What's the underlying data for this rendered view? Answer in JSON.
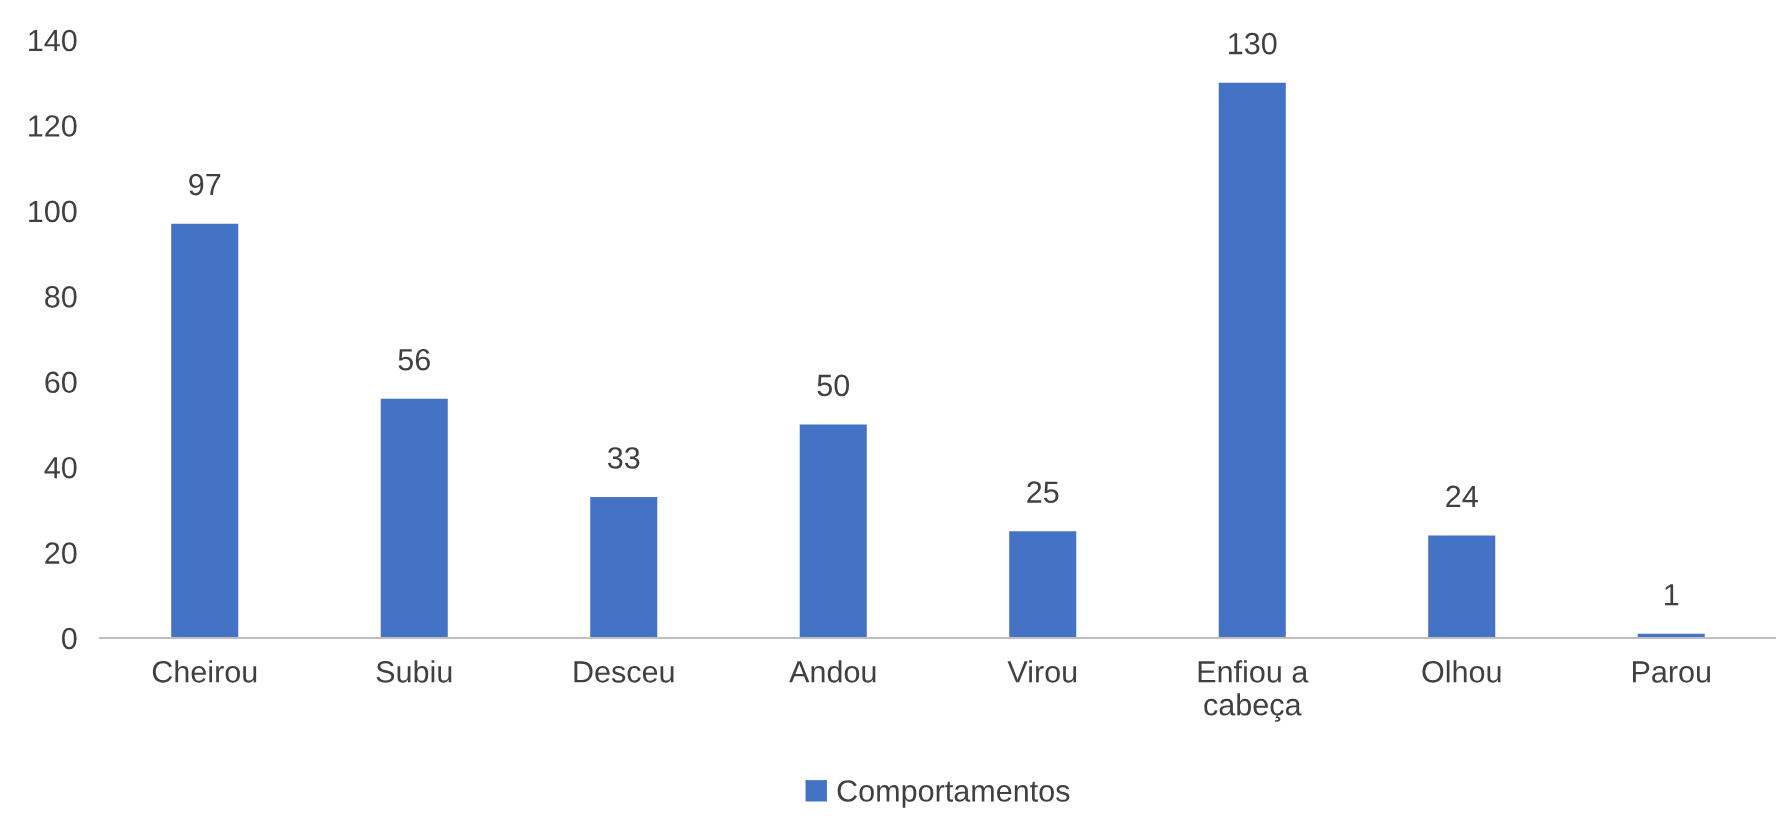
{
  "chart_data": {
    "type": "bar",
    "categories": [
      "Cheirou",
      "Subiu",
      "Desceu",
      "Andou",
      "Virou",
      "Enfiou a\ncabeça",
      "Olhou",
      "Parou"
    ],
    "series": [
      {
        "name": "Comportamentos",
        "color": "#4472c4",
        "values": [
          97,
          56,
          33,
          50,
          25,
          130,
          24,
          1
        ]
      }
    ],
    "ylim": [
      0,
      140
    ],
    "yticks": [
      0,
      20,
      40,
      60,
      80,
      100,
      120,
      140
    ],
    "data_labels": true,
    "grid": false,
    "legend": "bottom"
  }
}
